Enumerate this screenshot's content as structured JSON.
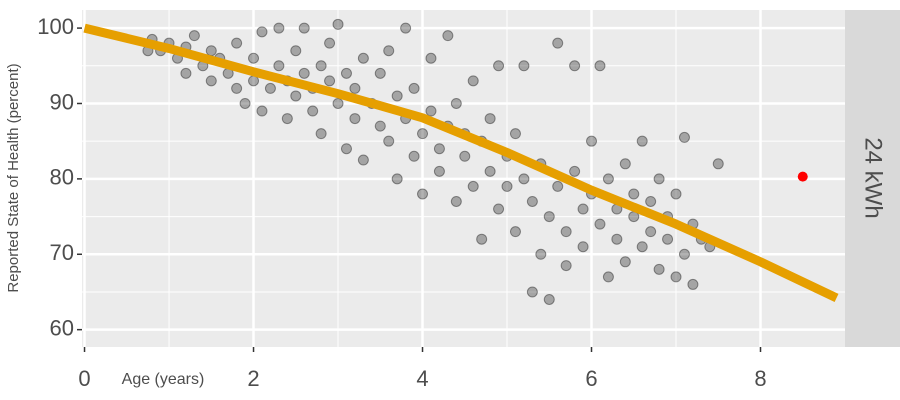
{
  "chart_data": {
    "type": "scatter",
    "x_label": "Age (years)",
    "y_label": "Reported State of Health (percent)",
    "facet_label": "24 kWh",
    "xlim": [
      -0.03,
      9.0
    ],
    "ylim": [
      57.7,
      102.4
    ],
    "xticks": [
      0,
      2,
      4,
      6,
      8
    ],
    "yticks": [
      60,
      70,
      80,
      90,
      100
    ],
    "x_minor_ticks": [
      1,
      3,
      5,
      7
    ],
    "y_minor_ticks": [
      65,
      75,
      85,
      95
    ],
    "grid": true,
    "point_color": "#000000",
    "points": {
      "x": [
        0.75,
        0.8,
        0.9,
        1.0,
        1.1,
        1.2,
        1.2,
        1.3,
        1.4,
        1.5,
        1.5,
        1.6,
        1.7,
        1.8,
        1.8,
        1.9,
        2.0,
        2.0,
        2.1,
        2.1,
        2.2,
        2.3,
        2.3,
        2.4,
        2.4,
        2.5,
        2.5,
        2.6,
        2.6,
        2.7,
        2.7,
        2.8,
        2.8,
        2.9,
        2.9,
        3.0,
        3.0,
        3.1,
        3.1,
        3.2,
        3.2,
        3.3,
        3.3,
        3.4,
        3.5,
        3.5,
        3.6,
        3.6,
        3.7,
        3.7,
        3.8,
        3.8,
        3.9,
        3.9,
        4.0,
        4.0,
        4.1,
        4.1,
        4.2,
        4.2,
        4.3,
        4.3,
        4.4,
        4.4,
        4.5,
        4.5,
        4.6,
        4.6,
        4.7,
        4.7,
        4.8,
        4.8,
        4.9,
        4.9,
        5.0,
        5.0,
        5.1,
        5.1,
        5.2,
        5.2,
        5.3,
        5.3,
        5.4,
        5.4,
        5.5,
        5.5,
        5.6,
        5.6,
        5.7,
        5.7,
        5.8,
        5.8,
        5.9,
        5.9,
        6.0,
        6.0,
        6.1,
        6.1,
        6.2,
        6.2,
        6.3,
        6.3,
        6.4,
        6.4,
        6.5,
        6.5,
        6.6,
        6.6,
        6.7,
        6.7,
        6.8,
        6.8,
        6.9,
        6.9,
        7.0,
        7.0,
        7.1,
        7.1,
        7.2,
        7.2,
        7.3,
        7.4,
        7.5
      ],
      "y": [
        97,
        98.5,
        97,
        98,
        96,
        94,
        97.5,
        99,
        95,
        93,
        97,
        96,
        94,
        92,
        98,
        90,
        93,
        96,
        89,
        99.5,
        92,
        95,
        100,
        88,
        93,
        91,
        97,
        94,
        100,
        89,
        92,
        95,
        86,
        93,
        98,
        90,
        100.5,
        84,
        94,
        88,
        92,
        96,
        82.5,
        90,
        87,
        94,
        85,
        97,
        80,
        91,
        88,
        100,
        83,
        92,
        86,
        78,
        89,
        96,
        81,
        84,
        99,
        87,
        77,
        90,
        83,
        86,
        79,
        93,
        72,
        85,
        81,
        88,
        76,
        95,
        83,
        79,
        86,
        73,
        80,
        95,
        77,
        65,
        82,
        70,
        75,
        64,
        79,
        98,
        73,
        68.5,
        81,
        95,
        76,
        71,
        78,
        85,
        74,
        95,
        80,
        67,
        72,
        76,
        82,
        69,
        75,
        78,
        71,
        85,
        73,
        77,
        68,
        80,
        72,
        75,
        67,
        78,
        70,
        85.5,
        74,
        66,
        72,
        71,
        82
      ]
    },
    "fit_line": {
      "color": "#e69f00",
      "x": [
        0,
        1,
        2,
        3,
        4,
        5,
        6,
        7,
        8,
        8.9
      ],
      "y": [
        100,
        97.3,
        94.2,
        91.3,
        88.1,
        83.5,
        78.5,
        74,
        69,
        64.2
      ]
    },
    "highlight": {
      "color": "#ff0000",
      "x": 8.5,
      "y": 80.3
    }
  }
}
